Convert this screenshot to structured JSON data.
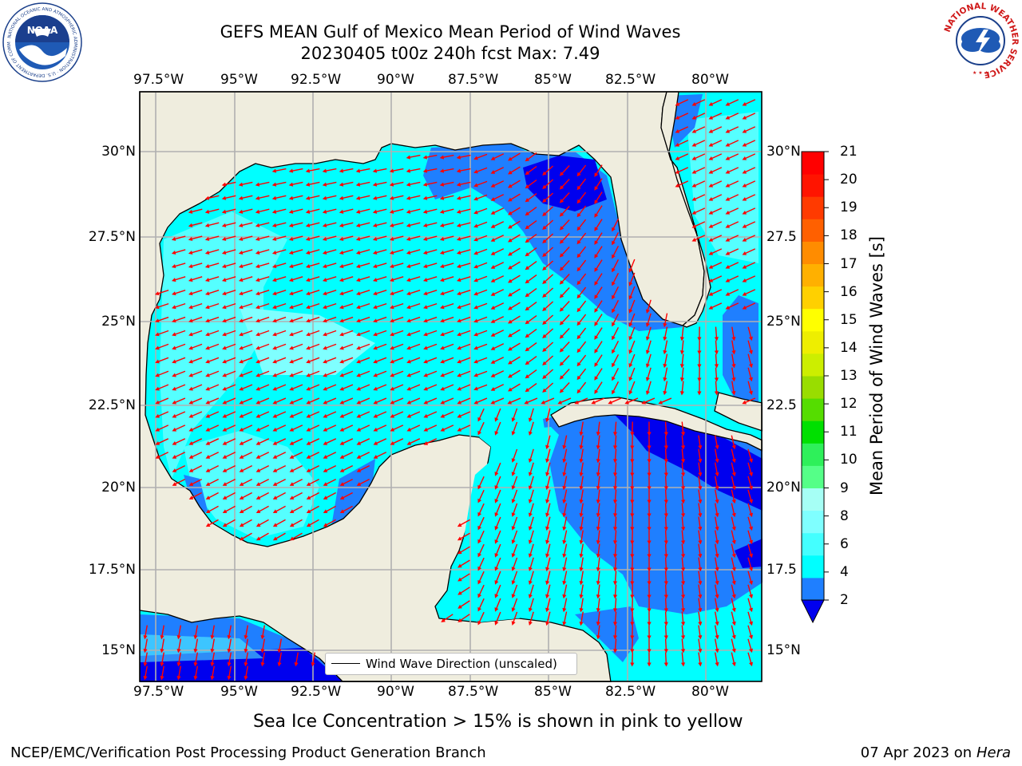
{
  "header": {
    "title_line1": "GEFS MEAN Gulf of Mexico Mean Period of Wind Waves",
    "title_line2": "20230405 t00z 240h fcst   Max: 7.49"
  },
  "logos": {
    "left": {
      "name": "NOAA",
      "ring_text": "NATIONAL OCEANIC AND ATMOSPHERIC ADMINISTRATION · U.S. DEPARTMENT OF COMMERCE",
      "center_text": "NOAA"
    },
    "right": {
      "name": "National Weather Service",
      "ring_text": "NATIONAL WEATHER SERVICE"
    }
  },
  "map": {
    "lon_labels": [
      "97.5°W",
      "95°W",
      "92.5°W",
      "90°W",
      "87.5°W",
      "85°W",
      "82.5°W",
      "80°W"
    ],
    "lat_labels_left": [
      "30°N",
      "27.5°N",
      "25°N",
      "22.5°N",
      "20°N",
      "17.5°N",
      "15°N"
    ],
    "lat_labels_right": [
      "30°N",
      "27.5",
      "25°N",
      "22.5",
      "20°N",
      "17.5",
      "15°N"
    ],
    "legend_label": "Wind Wave Direction (unscaled)",
    "arrow_color": "#ff0000",
    "land_color": "#efedde",
    "grid_color": "#b0b0b0"
  },
  "colorbar": {
    "label": "Mean Period of Wind Waves [s]",
    "ticks": [
      "21",
      "20",
      "19",
      "18",
      "17",
      "16",
      "15",
      "14",
      "13",
      "12",
      "11",
      "10",
      "9",
      "8",
      "6",
      "4",
      "2"
    ],
    "colors_bottom_to_top": [
      "#0000ee",
      "#1f7fff",
      "#00ffff",
      "#44ffff",
      "#7fffff",
      "#a6fff5",
      "#55ff88",
      "#2ef05a",
      "#00e000",
      "#55dd00",
      "#99dd00",
      "#ccee00",
      "#eeee00",
      "#ffff00",
      "#ffd000",
      "#ffb000",
      "#ff8c00",
      "#ff6000",
      "#ff3a00",
      "#ff1400",
      "#ff0000"
    ]
  },
  "footer": {
    "sea_ice_note": "Sea Ice Concentration > 15% is shown in pink to yellow",
    "left_credit": "NCEP/EMC/Verification Post Processing Product Generation Branch",
    "right_date": "07 Apr 2023 on ",
    "right_machine": "Hera"
  }
}
